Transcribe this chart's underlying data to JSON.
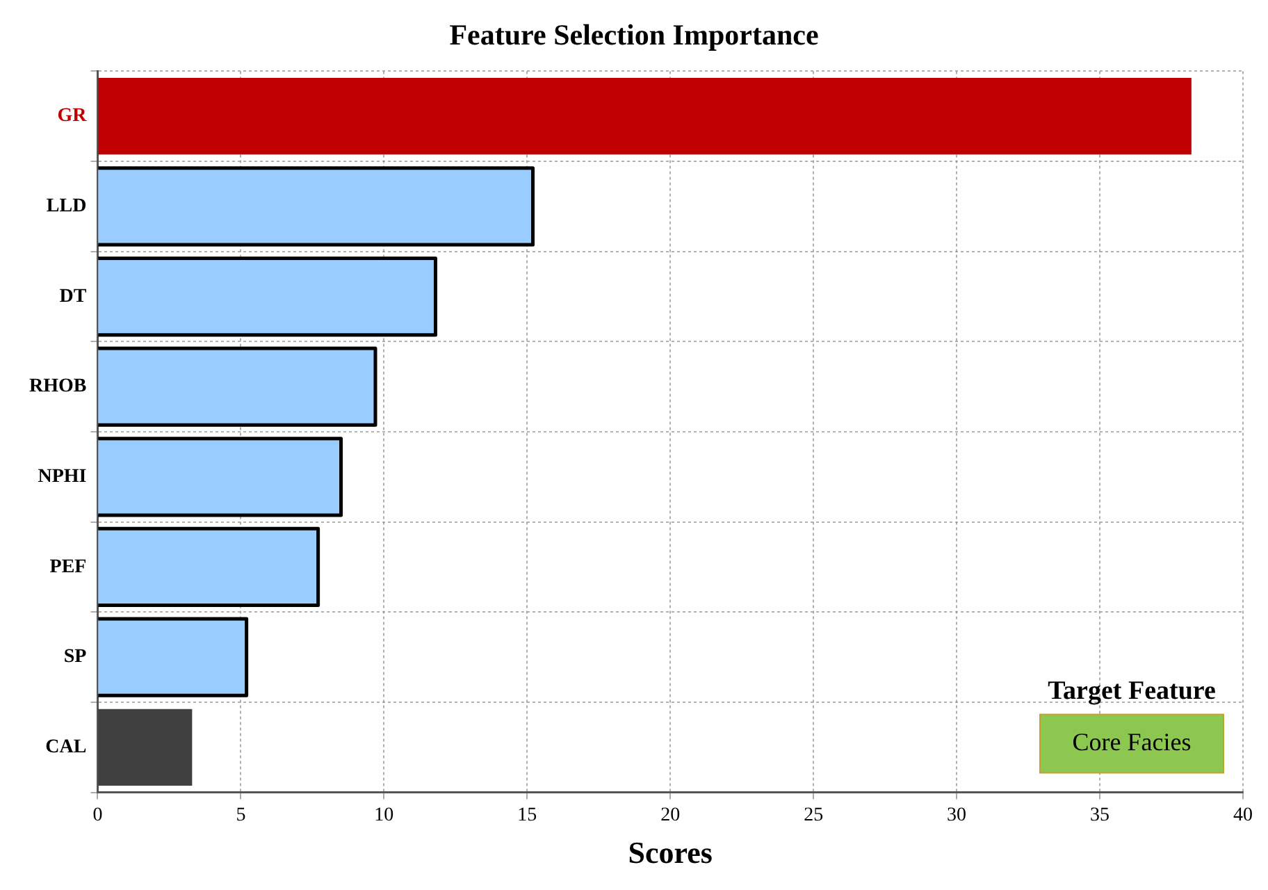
{
  "chart_data": {
    "type": "bar",
    "orientation": "horizontal",
    "title": "Feature Selection Importance",
    "xlabel": "Scores",
    "categories": [
      "GR",
      "LLD",
      "DT",
      "RHOB",
      "NPHI",
      "PEF",
      "SP",
      "CAL"
    ],
    "values": [
      38.2,
      15.2,
      11.8,
      9.7,
      8.5,
      7.7,
      5.2,
      3.3
    ],
    "colors": [
      "#c00000",
      "#99ccff",
      "#99ccff",
      "#99ccff",
      "#99ccff",
      "#99ccff",
      "#99ccff",
      "#404040"
    ],
    "xlim": [
      0,
      40
    ],
    "xticks": [
      0,
      5,
      10,
      15,
      20,
      25,
      30,
      35,
      40
    ],
    "grid": true,
    "annotations": [
      "Target Feature",
      "Core Facies"
    ]
  }
}
